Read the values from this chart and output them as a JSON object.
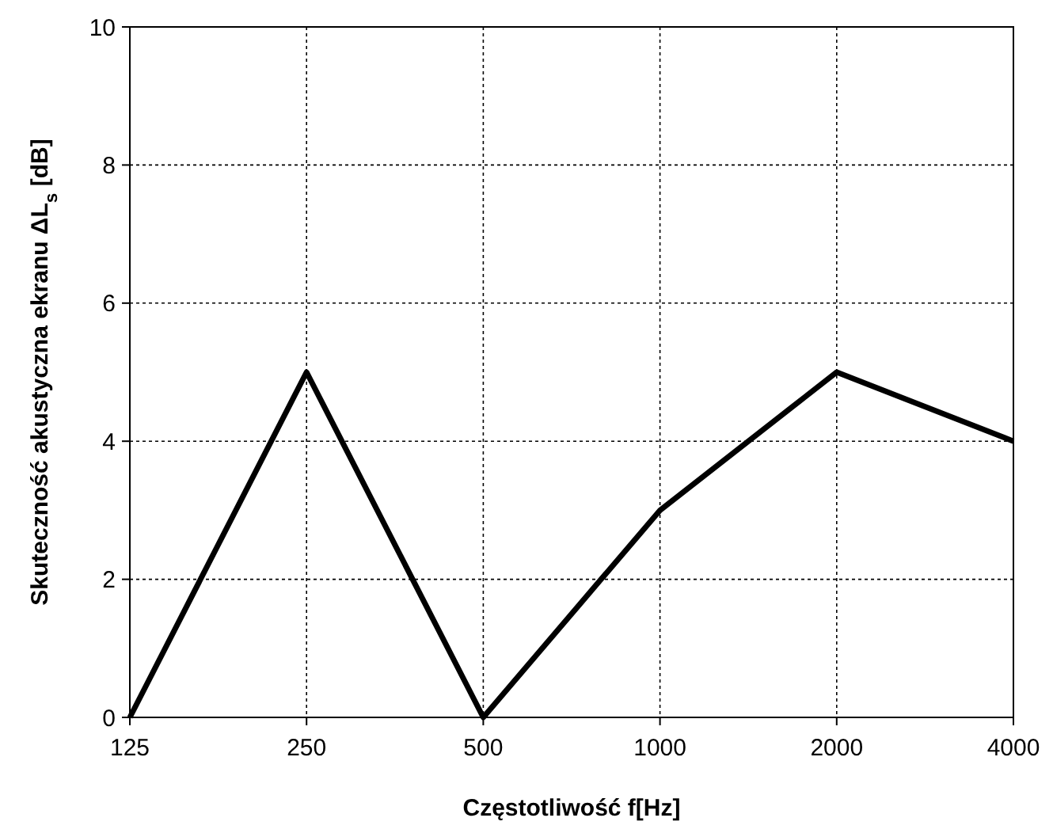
{
  "chart_data": {
    "type": "line",
    "xlabel": "Częstotliwość f[Hz]",
    "ylabel": "Skuteczność akustyczna ekranu ΔL$_{s}$ [dB]",
    "categories": [
      "125",
      "250",
      "500",
      "1000",
      "2000",
      "4000"
    ],
    "series": [
      {
        "color": "#000000",
        "values": [
          0,
          5,
          0,
          3,
          5,
          4
        ]
      }
    ],
    "ylim": [
      0,
      10
    ],
    "yticks": [
      0,
      2,
      4,
      6,
      8,
      10
    ],
    "grid": true,
    "marker": "none",
    "line_style": "solid"
  }
}
